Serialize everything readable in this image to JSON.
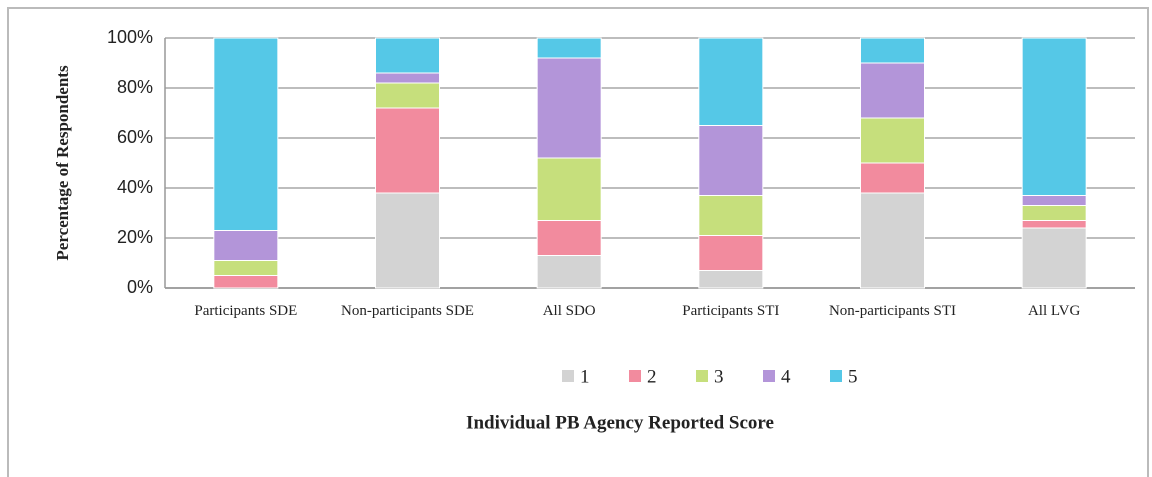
{
  "chart_data": {
    "type": "stacked_bar",
    "x_label": "Individual PB Agency Reported Score",
    "y_label": "Percentage of Respondents",
    "categories": [
      "Participants SDE",
      "Non-participants SDE",
      "All SDO",
      "Participants STI",
      "Non-participants STI",
      "All LVG"
    ],
    "series": [
      {
        "name": "1",
        "color": "#d3d3d3",
        "values": [
          0,
          38,
          13,
          7,
          38,
          24
        ]
      },
      {
        "name": "2",
        "color": "#f28b9e",
        "values": [
          5,
          34,
          14,
          14,
          12,
          3
        ]
      },
      {
        "name": "3",
        "color": "#c6df7c",
        "values": [
          6,
          10,
          25,
          16,
          18,
          6
        ]
      },
      {
        "name": "4",
        "color": "#b395d9",
        "values": [
          12,
          4,
          40,
          28,
          22,
          4
        ]
      },
      {
        "name": "5",
        "color": "#55c8e7",
        "values": [
          77,
          14,
          8,
          35,
          10,
          63
        ]
      }
    ],
    "ylim": [
      0,
      100
    ],
    "yticks": [
      {
        "value": 0,
        "label": "0%"
      },
      {
        "value": 20,
        "label": "20%"
      },
      {
        "value": 40,
        "label": "40%"
      },
      {
        "value": 60,
        "label": "60%"
      },
      {
        "value": 80,
        "label": "80%"
      },
      {
        "value": 100,
        "label": "100%"
      }
    ],
    "grid": true,
    "legend": "bottom"
  }
}
